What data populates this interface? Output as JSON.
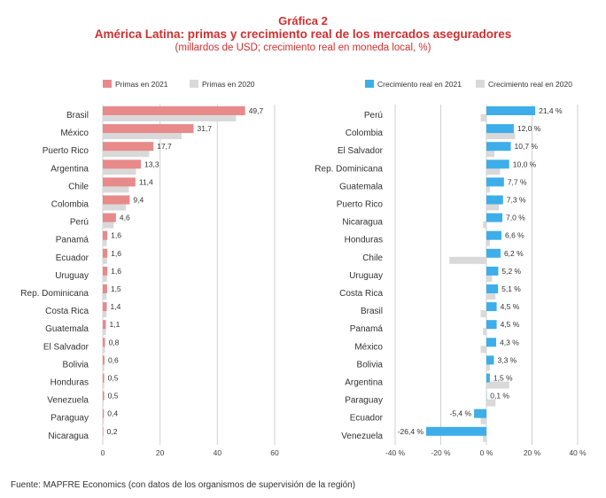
{
  "header": {
    "title": "Gráfica 2",
    "subtitle": "América Latina: primas y crecimiento real de los mercados aseguradores",
    "units": "(millardos de USD; crecimiento real en moneda local, %)"
  },
  "source": "Fuente: MAPFRE Economics (con datos de los organismos de supervisión de la región)",
  "colors": {
    "primary_2021": "#e8898a",
    "primary_2020": "#d9d9d9",
    "growth_2021": "#3daee9",
    "growth_2020": "#d9d9d9",
    "title": "#d32f2f"
  },
  "chart_data": [
    {
      "type": "bar",
      "orientation": "horizontal",
      "legend": [
        "Primas en 2021",
        "Primas en 2020"
      ],
      "categories": [
        "Brasil",
        "México",
        "Puerto Rico",
        "Argentina",
        "Chile",
        "Colombia",
        "Perú",
        "Panamá",
        "Ecuador",
        "Uruguay",
        "Rep. Dominicana",
        "Costa Rica",
        "Guatemala",
        "El Salvador",
        "Bolivia",
        "Honduras",
        "Venezuela",
        "Paraguay",
        "Nicaragua"
      ],
      "series": [
        {
          "name": "Primas en 2021",
          "values": [
            49.7,
            31.7,
            17.7,
            13.3,
            11.4,
            9.4,
            4.6,
            1.6,
            1.6,
            1.6,
            1.5,
            1.4,
            1.1,
            0.8,
            0.6,
            0.5,
            0.5,
            0.4,
            0.2
          ]
        },
        {
          "name": "Primas en 2020",
          "values": [
            46.5,
            27.5,
            16.2,
            11.6,
            9.1,
            8.1,
            3.8,
            1.4,
            1.5,
            1.5,
            1.3,
            1.3,
            1.1,
            0.8,
            0.5,
            0.5,
            0.3,
            0.4,
            0.2
          ]
        }
      ],
      "value_labels": [
        "49,7",
        "31,7",
        "17,7",
        "13,3",
        "11,4",
        "9,4",
        "4,6",
        "1,6",
        "1,6",
        "1,6",
        "1,5",
        "1,4",
        "1,1",
        "0,8",
        "0,6",
        "0,5",
        "0,5",
        "0,4",
        "0,2"
      ],
      "xlim": [
        0,
        60
      ],
      "xticks": [
        0,
        20,
        40,
        60
      ],
      "xtick_labels": [
        "0",
        "20",
        "40",
        "60"
      ]
    },
    {
      "type": "bar",
      "orientation": "horizontal",
      "legend": [
        "Crecimiento real en 2021",
        "Crecimiento real en 2020"
      ],
      "categories": [
        "Perú",
        "Colombia",
        "El Salvador",
        "Rep. Dominicana",
        "Guatemala",
        "Puerto Rico",
        "Nicaragua",
        "Honduras",
        "Chile",
        "Uruguay",
        "Costa Rica",
        "Brasil",
        "Panamá",
        "México",
        "Bolivia",
        "Argentina",
        "Paraguay",
        "Ecuador",
        "Venezuela"
      ],
      "series": [
        {
          "name": "Crecimiento real en 2021",
          "values": [
            21.4,
            12.0,
            10.7,
            10.0,
            7.7,
            7.3,
            7.0,
            6.6,
            6.2,
            5.2,
            5.1,
            4.5,
            4.5,
            4.3,
            3.3,
            1.5,
            0.1,
            -5.4,
            -26.4
          ]
        },
        {
          "name": "Crecimiento real en 2020",
          "values": [
            -2.5,
            12.6,
            3.5,
            6.0,
            1.5,
            5.5,
            -1.5,
            1.5,
            -16.2,
            2.5,
            4.0,
            -2.5,
            -1.5,
            -2.5,
            1.5,
            10.0,
            4.0,
            -2.5,
            -1.5
          ]
        }
      ],
      "value_labels": [
        "21,4 %",
        "12,0 %",
        "10,7 %",
        "10,0 %",
        "7,7 %",
        "7,3 %",
        "7,0 %",
        "6,6 %",
        "6,2 %",
        "5,2 %",
        "5,1 %",
        "4,5 %",
        "4,5 %",
        "4,3 %",
        "3,3 %",
        "1,5 %",
        "0,1 %",
        "-5,4 %",
        "-26,4 %"
      ],
      "xlim": [
        -40,
        40
      ],
      "xticks": [
        -40,
        -20,
        0,
        20,
        40
      ],
      "xtick_labels": [
        "-40 %",
        "-20 %",
        "0 %",
        "20 %",
        "40 %"
      ]
    }
  ]
}
